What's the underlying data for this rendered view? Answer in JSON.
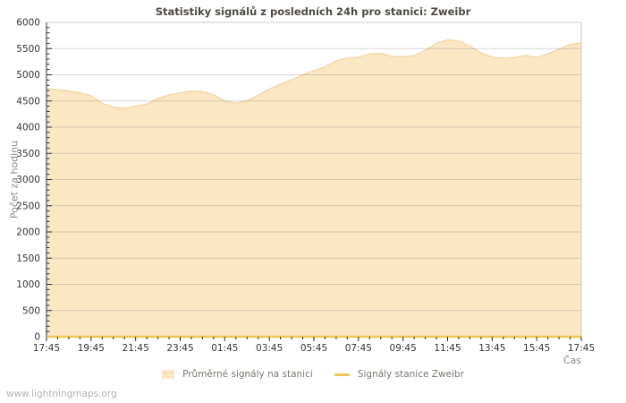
{
  "watermark": "www.lightningmaps.org",
  "colors": {
    "area_fill": "#FBE3BB",
    "area_outline": "#F0D5A0",
    "station_line": "#EDC754",
    "grid": "#8C8C8C",
    "axis_dark": "#2E2E2E",
    "frame_light": "#CBCBCB",
    "tick_text": "#333333",
    "axis_title_text": "#888888",
    "title_text": "#4D4A42"
  },
  "chart_data": {
    "type": "area",
    "title": "Statistiky signálů z posledních 24h pro stanici: Zweibr",
    "xlabel": "Čas",
    "ylabel": "Počet za hodinu",
    "ylim": [
      0,
      6000
    ],
    "ytick_step": 500,
    "ytick_minor_step": 100,
    "grid": true,
    "legend_position": "bottom",
    "x_tick_labels": [
      "17:45",
      "19:45",
      "21:45",
      "23:45",
      "01:45",
      "03:45",
      "05:45",
      "07:45",
      "09:45",
      "11:45",
      "13:45",
      "15:45",
      "17:45"
    ],
    "x_step_minutes": 30,
    "series": [
      {
        "name": "Průměrné signály na stanici",
        "type": "area",
        "color": "#FBE3BB",
        "values": [
          4740,
          4715,
          4690,
          4655,
          4600,
          4455,
          4380,
          4360,
          4405,
          4440,
          4550,
          4615,
          4655,
          4690,
          4675,
          4620,
          4500,
          4460,
          4505,
          4610,
          4730,
          4820,
          4905,
          5000,
          5080,
          5150,
          5270,
          5320,
          5330,
          5400,
          5410,
          5350,
          5350,
          5365,
          5470,
          5600,
          5670,
          5640,
          5550,
          5420,
          5340,
          5310,
          5330,
          5370,
          5330,
          5400,
          5490,
          5580,
          5610
        ]
      },
      {
        "name": "Signály stanice Zweibr",
        "type": "line",
        "color": "#EDC754",
        "values": [
          0,
          0,
          0,
          0,
          0,
          0,
          0,
          0,
          0,
          0,
          0,
          0,
          0,
          0,
          0,
          0,
          0,
          0,
          0,
          0,
          0,
          0,
          0,
          0,
          0,
          0,
          0,
          0,
          0,
          0,
          0,
          0,
          0,
          0,
          0,
          0,
          0,
          0,
          0,
          0,
          0,
          0,
          0,
          0,
          0,
          0,
          0,
          0,
          0
        ]
      }
    ]
  }
}
